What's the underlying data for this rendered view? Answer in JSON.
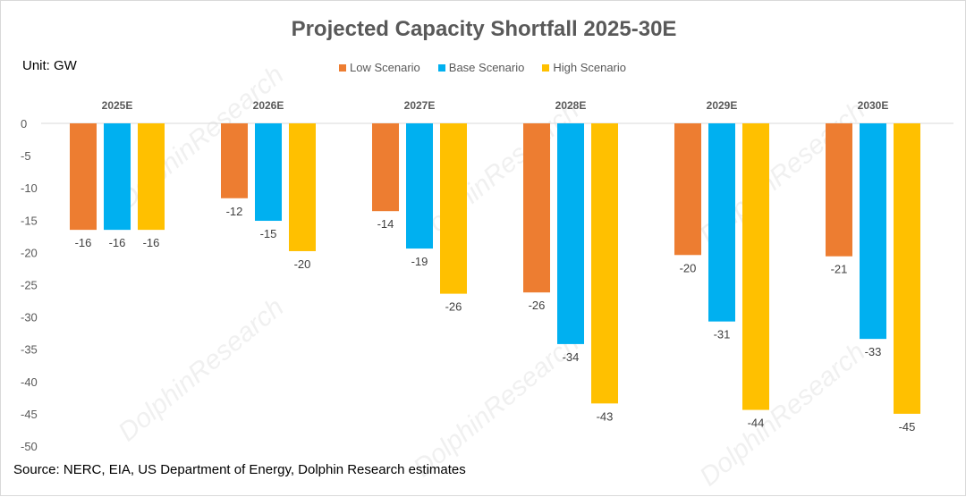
{
  "chart_data": {
    "type": "bar",
    "title": "Projected Capacity Shortfall 2025-30E",
    "unit_label": "Unit: GW",
    "source": "Source: NERC, EIA, US Department of Energy, Dolphin Research estimates",
    "categories": [
      "2025E",
      "2026E",
      "2027E",
      "2028E",
      "2029E",
      "2030E"
    ],
    "series": [
      {
        "name": "Low Scenario",
        "color": "#ED7D31",
        "values": [
          -16.5,
          -11.6,
          -13.6,
          -26.2,
          -20.4,
          -20.6
        ],
        "labels": [
          "-16",
          "-12",
          "-14",
          "-26",
          "-20",
          "-21"
        ]
      },
      {
        "name": "Base Scenario",
        "color": "#00B0F0",
        "values": [
          -16.5,
          -15.1,
          -19.4,
          -34.2,
          -30.7,
          -33.4
        ],
        "labels": [
          "-16",
          "-15",
          "-19",
          "-34",
          "-31",
          "-33"
        ]
      },
      {
        "name": "High Scenario",
        "color": "#FFC000",
        "values": [
          -16.5,
          -19.8,
          -26.4,
          -43.4,
          -44.4,
          -45.0
        ],
        "labels": [
          "-16",
          "-20",
          "-26",
          "-43",
          "-44",
          "-45"
        ]
      }
    ],
    "yticks": [
      "0",
      "-5",
      "-10",
      "-15",
      "-20",
      "-25",
      "-30",
      "-35",
      "-40",
      "-45",
      "-50"
    ],
    "ylim": [
      -50,
      0
    ],
    "grid": false,
    "legend_position": "top",
    "watermark": "DolphinResearch"
  }
}
